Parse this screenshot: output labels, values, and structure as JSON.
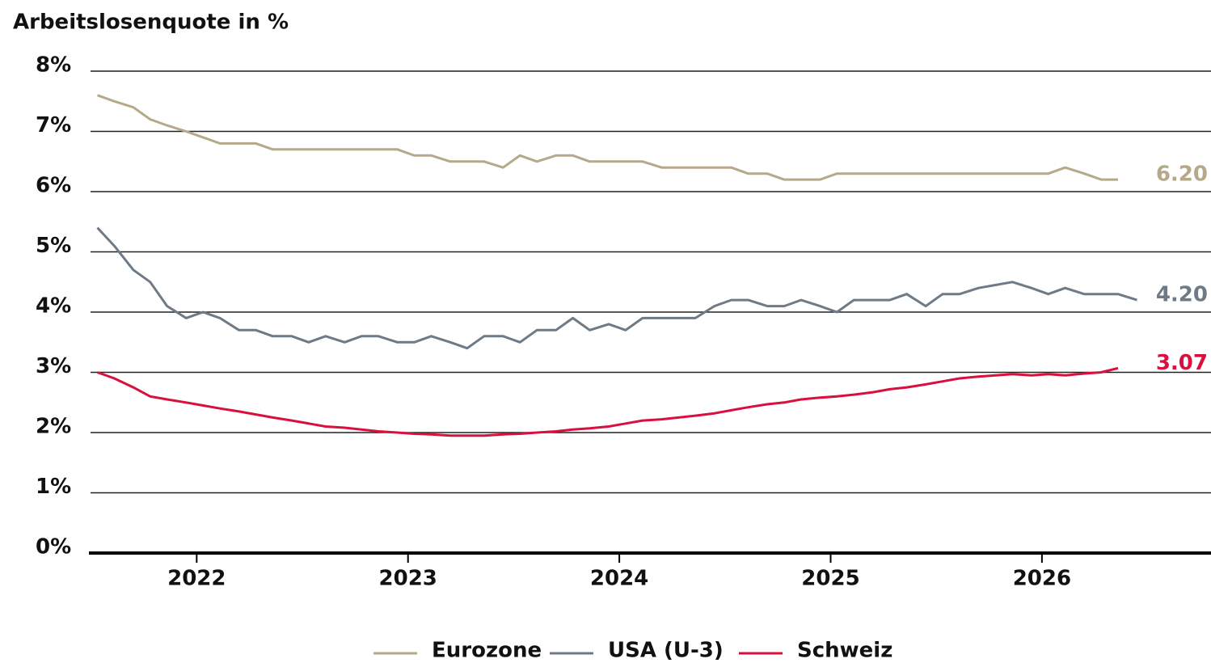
{
  "chart_data": {
    "type": "line",
    "title": "Arbeitslosenquote in %",
    "x": [
      2021.53,
      2021.61,
      2021.7,
      2021.78,
      2021.86,
      2021.95,
      2022.03,
      2022.11,
      2022.2,
      2022.28,
      2022.36,
      2022.45,
      2022.53,
      2022.61,
      2022.7,
      2022.78,
      2022.86,
      2022.95,
      2023.03,
      2023.11,
      2023.2,
      2023.28,
      2023.36,
      2023.45,
      2023.53,
      2023.61,
      2023.7,
      2023.78,
      2023.86,
      2023.95,
      2024.03,
      2024.11,
      2024.2,
      2024.28,
      2024.36,
      2024.45,
      2024.53,
      2024.61,
      2024.7,
      2024.78,
      2024.86,
      2024.95,
      2025.03,
      2025.11,
      2025.2,
      2025.28,
      2025.36,
      2025.45,
      2025.53,
      2025.61,
      2025.7,
      2025.78,
      2025.86,
      2025.95,
      2026.03,
      2026.11,
      2026.2,
      2026.28,
      2026.36,
      2026.45
    ],
    "xlim": [
      2021.49,
      2026.8
    ],
    "xticks": [
      2022,
      2023,
      2024,
      2025,
      2026
    ],
    "ylim": [
      0,
      8
    ],
    "yticks": [
      {
        "value": 0,
        "label": "0%"
      },
      {
        "value": 1,
        "label": "1%"
      },
      {
        "value": 2,
        "label": "2%"
      },
      {
        "value": 3,
        "label": "3%"
      },
      {
        "value": 4,
        "label": "4%"
      },
      {
        "value": 5,
        "label": "5%"
      },
      {
        "value": 6,
        "label": "6%"
      },
      {
        "value": 7,
        "label": "7%"
      },
      {
        "value": 8,
        "label": "8%"
      }
    ],
    "grid": true,
    "series": [
      {
        "name": "Eurozone",
        "color": "#b5a98a",
        "values": [
          7.6,
          7.5,
          7.4,
          7.2,
          7.1,
          7.0,
          6.9,
          6.8,
          6.8,
          6.8,
          6.7,
          6.7,
          6.7,
          6.7,
          6.7,
          6.7,
          6.7,
          6.7,
          6.6,
          6.6,
          6.5,
          6.5,
          6.5,
          6.4,
          6.6,
          6.5,
          6.6,
          6.6,
          6.5,
          6.5,
          6.5,
          6.5,
          6.4,
          6.4,
          6.4,
          6.4,
          6.4,
          6.3,
          6.3,
          6.2,
          6.2,
          6.2,
          6.3,
          6.3,
          6.3,
          6.3,
          6.3,
          6.3,
          6.3,
          6.3,
          6.3,
          6.3,
          6.3,
          6.3,
          6.3,
          6.4,
          6.3,
          6.2,
          6.2,
          null
        ],
        "value_labels": [
          null,
          null,
          null,
          null,
          null,
          null,
          null,
          null,
          null,
          null,
          null,
          null,
          null,
          null,
          null,
          null,
          null,
          null,
          null,
          null,
          null,
          null,
          null,
          null,
          null,
          null,
          null,
          null,
          null,
          null,
          null,
          null,
          null,
          null,
          null,
          null,
          null,
          null,
          null,
          null,
          null,
          null,
          null,
          null,
          null,
          null,
          null,
          null,
          null,
          null,
          null,
          null,
          null,
          null,
          null,
          null,
          null,
          null,
          "6.20",
          null
        ]
      },
      {
        "name": "USA (U-3)",
        "color": "#6e7a86",
        "values": [
          5.4,
          5.1,
          4.7,
          4.5,
          4.1,
          3.9,
          4.0,
          3.9,
          3.7,
          3.7,
          3.6,
          3.6,
          3.5,
          3.6,
          3.5,
          3.6,
          3.6,
          3.5,
          3.5,
          3.6,
          3.5,
          3.4,
          3.6,
          3.6,
          3.5,
          3.7,
          3.7,
          3.9,
          3.7,
          3.8,
          3.7,
          3.9,
          3.9,
          3.9,
          3.9,
          4.1,
          4.2,
          4.2,
          4.1,
          4.1,
          4.2,
          4.1,
          4.0,
          4.2,
          4.2,
          4.2,
          4.3,
          4.1,
          4.3,
          4.3,
          4.4,
          4.45,
          4.5,
          4.4,
          4.3,
          4.4,
          4.3,
          4.3,
          4.3,
          4.2
        ],
        "value_labels": [
          null,
          null,
          null,
          null,
          null,
          null,
          null,
          null,
          null,
          null,
          null,
          null,
          null,
          null,
          null,
          null,
          null,
          null,
          null,
          null,
          null,
          null,
          null,
          null,
          null,
          null,
          null,
          null,
          null,
          null,
          null,
          null,
          null,
          null,
          null,
          null,
          null,
          null,
          null,
          null,
          null,
          null,
          null,
          null,
          null,
          null,
          null,
          null,
          null,
          null,
          null,
          null,
          null,
          null,
          null,
          null,
          null,
          null,
          null,
          "4.20"
        ]
      },
      {
        "name": "Schweiz",
        "color": "#d9103e",
        "values": [
          3.0,
          2.9,
          2.75,
          2.6,
          2.55,
          2.5,
          2.45,
          2.4,
          2.35,
          2.3,
          2.25,
          2.2,
          2.15,
          2.1,
          2.08,
          2.05,
          2.02,
          2.0,
          1.98,
          1.97,
          1.95,
          1.95,
          1.95,
          1.97,
          1.98,
          2.0,
          2.02,
          2.05,
          2.07,
          2.1,
          2.15,
          2.2,
          2.22,
          2.25,
          2.28,
          2.32,
          2.37,
          2.42,
          2.47,
          2.5,
          2.55,
          2.58,
          2.6,
          2.63,
          2.67,
          2.72,
          2.75,
          2.8,
          2.85,
          2.9,
          2.93,
          2.95,
          2.97,
          2.95,
          2.97,
          2.95,
          2.98,
          3.0,
          3.07,
          null
        ],
        "value_labels": [
          null,
          null,
          null,
          null,
          null,
          null,
          null,
          null,
          null,
          null,
          null,
          null,
          null,
          null,
          null,
          null,
          null,
          null,
          null,
          null,
          null,
          null,
          null,
          null,
          null,
          null,
          null,
          null,
          null,
          null,
          null,
          null,
          null,
          null,
          null,
          null,
          null,
          null,
          null,
          null,
          null,
          null,
          null,
          null,
          null,
          null,
          null,
          null,
          null,
          null,
          null,
          null,
          null,
          null,
          null,
          null,
          null,
          null,
          "3.07",
          null
        ]
      }
    ]
  }
}
